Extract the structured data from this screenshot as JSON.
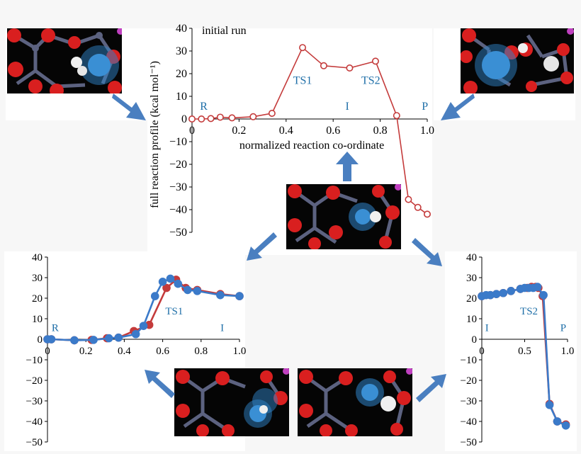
{
  "colors": {
    "red_series": "#c43b3b",
    "blue_series": "#3b7ac9",
    "annotation": "#1f6fa8",
    "arrow": "#4a7fc0",
    "atom_red": "#d91f1f",
    "atom_grey": "#5c6280",
    "atom_white": "#f0f0f0",
    "atom_pink": "#c040c0",
    "highlight": "#2f83c8"
  },
  "chart_data": [
    {
      "id": "main",
      "type": "line",
      "title": "initial run",
      "xlabel": "normalized reaction co-ordinate",
      "ylabel": "full reaction profile (kcal mol⁻¹)",
      "xlim": [
        0,
        1.0
      ],
      "ylim": [
        -50,
        40
      ],
      "xticks": [
        "0",
        "0.2",
        "0.4",
        "0.6",
        "0.8",
        "1.0"
      ],
      "yticks": [
        "40",
        "30",
        "20",
        "10",
        "0",
        "−10",
        "−20",
        "−30",
        "−40",
        "−50"
      ],
      "annotations": [
        {
          "text": "R",
          "x": 0.05,
          "y": 4
        },
        {
          "text": "TS1",
          "x": 0.47,
          "y": 15.5
        },
        {
          "text": "TS2",
          "x": 0.76,
          "y": 15.5
        },
        {
          "text": "I",
          "x": 0.66,
          "y": 4
        },
        {
          "text": "P",
          "x": 0.99,
          "y": 4
        }
      ],
      "series": [
        {
          "color_key": "red_series",
          "x": [
            0.0,
            0.04,
            0.08,
            0.12,
            0.17,
            0.26,
            0.34,
            0.47,
            0.56,
            0.67,
            0.78,
            0.87,
            0.92,
            0.96,
            1.0
          ],
          "y": [
            0,
            0,
            0.2,
            0.8,
            0.5,
            1,
            2.5,
            31.5,
            23.5,
            22.5,
            25.5,
            1.5,
            -35.5,
            -39,
            -42
          ]
        }
      ]
    },
    {
      "id": "left",
      "type": "line",
      "xlim": [
        0,
        1.0
      ],
      "ylim": [
        -50,
        40
      ],
      "xticks": [
        "0",
        "0.2",
        "0.4",
        "0.6",
        "0.8",
        "1.0"
      ],
      "yticks": [
        "40",
        "30",
        "20",
        "10",
        "0",
        "−10",
        "−20",
        "−30",
        "−40",
        "−50"
      ],
      "annotations": [
        {
          "text": "R",
          "x": 0.04,
          "y": 4
        },
        {
          "text": "TS1",
          "x": 0.66,
          "y": 12
        },
        {
          "text": "I",
          "x": 0.91,
          "y": 4
        }
      ],
      "series": [
        {
          "color_key": "red_series",
          "x": [
            0.0,
            0.02,
            0.14,
            0.23,
            0.31,
            0.37,
            0.45,
            0.53,
            0.62,
            0.67,
            0.72,
            0.78,
            0.9,
            1.0
          ],
          "y": [
            0,
            0,
            -0.5,
            -0.3,
            0.5,
            0.8,
            4,
            7,
            25,
            29,
            25,
            24,
            22,
            21
          ]
        },
        {
          "color_key": "blue_series",
          "x": [
            0.0,
            0.02,
            0.14,
            0.24,
            0.32,
            0.37,
            0.46,
            0.5,
            0.56,
            0.6,
            0.64,
            0.68,
            0.73,
            0.78,
            0.9,
            1.0
          ],
          "y": [
            0,
            0,
            -0.5,
            -0.3,
            0.5,
            0.8,
            2.5,
            6.5,
            21,
            28,
            29.5,
            27,
            24,
            23.5,
            21.5,
            21
          ]
        }
      ]
    },
    {
      "id": "right",
      "type": "line",
      "xlim": [
        0,
        1.0
      ],
      "ylim": [
        -50,
        40
      ],
      "xticks": [
        "0",
        "0.5",
        "1.0"
      ],
      "yticks": [
        "40",
        "30",
        "20",
        "10",
        "0",
        "−10",
        "−20",
        "−30",
        "−40",
        "−50"
      ],
      "annotations": [
        {
          "text": "TS2",
          "x": 0.55,
          "y": 12
        },
        {
          "text": "I",
          "x": 0.06,
          "y": 4
        },
        {
          "text": "P",
          "x": 0.95,
          "y": 4
        }
      ],
      "series": [
        {
          "color_key": "red_series",
          "x": [
            0.0,
            0.1,
            0.17,
            0.25,
            0.34,
            0.45,
            0.53,
            0.58,
            0.63,
            0.66,
            0.71,
            0.79,
            0.88,
            0.98
          ],
          "y": [
            21,
            21.5,
            22,
            22.5,
            23.5,
            24.5,
            25,
            25.5,
            25.5,
            25,
            21,
            -31.5,
            -40,
            -41.5
          ]
        },
        {
          "color_key": "blue_series",
          "x": [
            0.0,
            0.05,
            0.1,
            0.17,
            0.25,
            0.34,
            0.45,
            0.5,
            0.55,
            0.6,
            0.65,
            0.72,
            0.79,
            0.88,
            0.98
          ],
          "y": [
            21,
            21.5,
            21.5,
            22,
            22.5,
            23.5,
            24.5,
            25,
            25,
            25,
            25.5,
            21.5,
            -32,
            -40,
            -42
          ]
        }
      ]
    }
  ]
}
